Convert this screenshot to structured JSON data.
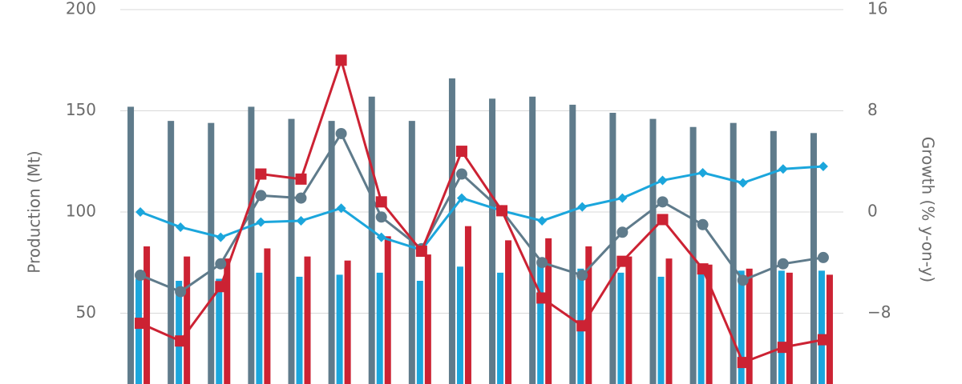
{
  "chart_data": {
    "type": "bar-line",
    "categories": [
      null,
      null,
      null,
      null,
      null,
      null,
      null,
      null,
      null,
      null,
      null,
      null,
      null,
      null,
      null,
      null,
      null,
      null
    ],
    "y_label": "Production (Mt)",
    "y2_label": "Growth (% y-on-y)",
    "ylim": [
      15,
      200
    ],
    "yticks": [
      50,
      100,
      150,
      200
    ],
    "y2lim": [
      -13.6,
      16
    ],
    "y2ticks": [
      {
        "value": -8,
        "label": "−8"
      },
      0,
      8,
      16
    ],
    "grid": true,
    "series": [
      {
        "type": "bar",
        "color": "#5f7b8b",
        "values": [
          152,
          145,
          144,
          152,
          146,
          145,
          157,
          145,
          166,
          156,
          157,
          153,
          149,
          146,
          142,
          144,
          140,
          139
        ]
      },
      {
        "type": "bar",
        "color": "#1ba6dc",
        "values": [
          67,
          66,
          67,
          70,
          68,
          69,
          70,
          66,
          73,
          70,
          74,
          72,
          70,
          68,
          72,
          71,
          71,
          71
        ]
      },
      {
        "type": "bar",
        "color": "#cc2233",
        "values": [
          83,
          78,
          77,
          82,
          78,
          76,
          88,
          79,
          93,
          86,
          87,
          83,
          78,
          77,
          74,
          72,
          70,
          69
        ]
      },
      {
        "type": "line",
        "axis": "y2",
        "marker": "circle",
        "color": "#5f7b8b",
        "values": [
          -5.0,
          -6.3,
          -4.1,
          1.3,
          1.1,
          6.2,
          -0.4,
          -2.9,
          3.0,
          0.1,
          -4.0,
          -5.0,
          -1.6,
          0.8,
          -1.0,
          -5.4,
          -4.1,
          -3.6
        ]
      },
      {
        "type": "line",
        "axis": "y2",
        "marker": "diamond",
        "color": "#1ba6dc",
        "values": [
          0.0,
          -1.2,
          -2.0,
          -0.8,
          -0.7,
          0.3,
          -2.0,
          -3.0,
          1.1,
          0.1,
          -0.7,
          0.4,
          1.1,
          2.5,
          3.1,
          2.3,
          3.4,
          3.6
        ]
      },
      {
        "type": "line",
        "axis": "y2",
        "marker": "square",
        "color": "#cc2233",
        "values": [
          -8.8,
          -10.2,
          -5.9,
          3.0,
          2.6,
          12.0,
          0.8,
          -3.1,
          4.8,
          0.1,
          -6.8,
          -9.0,
          -3.9,
          -0.6,
          -4.5,
          -11.9,
          -10.7,
          -10.1
        ]
      }
    ]
  }
}
